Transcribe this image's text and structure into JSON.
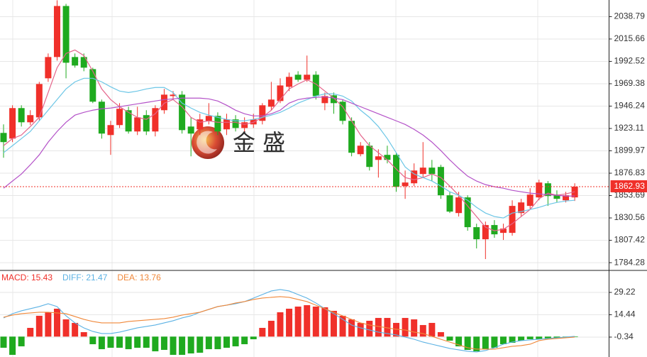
{
  "chart_data": [
    {
      "type": "candlestick",
      "watermark": "金 盛",
      "ylim": [
        1777,
        2056
      ],
      "yticks": [
        2038.79,
        2015.66,
        1992.52,
        1969.38,
        1946.24,
        1923.11,
        1899.97,
        1876.83,
        1853.69,
        1830.56,
        1807.42,
        1784.28
      ],
      "grid": true,
      "up_color": "#f0302a",
      "down_color": "#1faa1f",
      "current_price": 1862.93,
      "current_price_color": "#f0302a",
      "open": [
        1918.5,
        1912.6,
        1944.2,
        1929.5,
        1934.6,
        1975.0,
        1997.0,
        2049.8,
        1997.0,
        1997.0,
        1984.5,
        1950.8,
        1916.3,
        1926.6,
        1942.0,
        1920.0,
        1936.9,
        1920.0,
        1942.0,
        1956.6,
        1958.1,
        1925.1,
        1922.2,
        1931.0,
        1936.1,
        1922.2,
        1932.5,
        1923.6,
        1927.3,
        1931.0,
        1945.6,
        1951.5,
        1966.2,
        1978.7,
        1973.5,
        1978.7,
        1949.3,
        1957.4,
        1950.8,
        1931.0,
        1896.5,
        1905.3,
        1890.6,
        1895.8,
        1895.8,
        1863.5,
        1866.4,
        1876.0,
        1882.6,
        1883.3,
        1854.0,
        1835.6,
        1851.8,
        1821.0,
        1808.5,
        1823.2,
        1815.1,
        1815.1,
        1835.6,
        1843.0,
        1851.8,
        1866.4,
        1854.7,
        1848.8,
        1851.8
      ],
      "high": [
        1927.3,
        1947.1,
        1947.1,
        1942.0,
        1971.3,
        2000.7,
        2055.7,
        2052.0,
        2000.7,
        2000.7,
        1986.0,
        1953.0,
        1931.0,
        1949.3,
        1945.6,
        1945.6,
        1942.0,
        1947.1,
        1964.0,
        1961.8,
        1961.8,
        1934.6,
        1938.3,
        1949.3,
        1939.8,
        1938.3,
        1936.9,
        1934.6,
        1938.3,
        1949.3,
        1971.3,
        1975.0,
        1980.9,
        1982.3,
        1998.5,
        1982.3,
        1960.3,
        1960.3,
        1953.0,
        1934.6,
        1909.0,
        1909.0,
        1901.6,
        1905.3,
        1898.0,
        1879.6,
        1887.0,
        1909.0,
        1890.6,
        1885.5,
        1857.6,
        1857.6,
        1854.0,
        1824.6,
        1826.8,
        1828.3,
        1824.6,
        1848.8,
        1850.3,
        1861.3,
        1870.1,
        1868.7,
        1859.1,
        1857.6,
        1866.4
      ],
      "low": [
        1892.8,
        1909.0,
        1925.1,
        1926.6,
        1931.0,
        1971.3,
        1993.3,
        1975.0,
        1986.0,
        1982.3,
        1949.3,
        1912.6,
        1895.8,
        1923.6,
        1917.8,
        1916.3,
        1916.3,
        1914.9,
        1938.3,
        1953.0,
        1917.8,
        1894.3,
        1916.3,
        1927.3,
        1916.3,
        1916.3,
        1920.0,
        1920.0,
        1923.6,
        1927.3,
        1942.0,
        1949.3,
        1961.8,
        1971.3,
        1971.3,
        1953.0,
        1942.0,
        1938.3,
        1927.3,
        1894.3,
        1894.3,
        1879.6,
        1872.3,
        1887.0,
        1857.6,
        1850.3,
        1863.5,
        1872.3,
        1868.7,
        1850.3,
        1835.6,
        1832.0,
        1817.3,
        1799.0,
        1788.0,
        1810.0,
        1807.8,
        1812.2,
        1832.0,
        1839.3,
        1848.8,
        1843.0,
        1846.6,
        1846.6,
        1848.1
      ],
      "close": [
        1909.0,
        1944.2,
        1929.5,
        1936.9,
        1969.1,
        1997.0,
        2049.8,
        1991.1,
        1988.2,
        1986.0,
        1950.8,
        1917.8,
        1926.6,
        1943.5,
        1920.0,
        1934.6,
        1920.0,
        1944.2,
        1958.1,
        1958.1,
        1921.4,
        1917.8,
        1932.5,
        1936.1,
        1920.0,
        1932.5,
        1923.6,
        1929.5,
        1932.5,
        1947.1,
        1953.0,
        1967.6,
        1976.5,
        1973.5,
        1978.7,
        1956.6,
        1956.6,
        1949.3,
        1931.0,
        1898.0,
        1905.3,
        1883.3,
        1894.3,
        1890.6,
        1862.8,
        1867.2,
        1879.6,
        1882.6,
        1876.0,
        1854.0,
        1837.1,
        1851.8,
        1821.0,
        1808.5,
        1823.2,
        1813.6,
        1819.5,
        1843.0,
        1846.6,
        1854.7,
        1867.2,
        1853.2,
        1850.3,
        1854.0,
        1862.93
      ],
      "series": [
        {
          "color": "#e4648a",
          "values": [
            1905.3,
            1912.6,
            1916.3,
            1925.1,
            1934.6,
            1960.3,
            1986.0,
            2000.7,
            2004.3,
            1998.5,
            1982.3,
            1964.0,
            1953.0,
            1945.6,
            1939.8,
            1934.6,
            1932.5,
            1938.3,
            1949.3,
            1953.0,
            1945.6,
            1934.6,
            1929.5,
            1931.0,
            1929.5,
            1929.5,
            1929.5,
            1927.3,
            1929.5,
            1934.6,
            1942.0,
            1953.0,
            1964.0,
            1969.1,
            1973.5,
            1969.1,
            1961.8,
            1954.5,
            1945.6,
            1931.0,
            1916.3,
            1905.3,
            1898.0,
            1890.6,
            1881.1,
            1872.3,
            1870.1,
            1872.3,
            1876.0,
            1872.3,
            1863.5,
            1854.0,
            1843.0,
            1832.0,
            1821.0,
            1817.3,
            1818.8,
            1824.6,
            1832.0,
            1839.3,
            1850.3,
            1856.2,
            1854.0,
            1855.4,
            1857.6
          ]
        },
        {
          "color": "#6cc6e6",
          "values": [
            1898.0,
            1905.3,
            1912.6,
            1920.0,
            1931.0,
            1942.0,
            1953.0,
            1964.0,
            1971.3,
            1975.0,
            1975.0,
            1971.3,
            1966.2,
            1961.8,
            1960.3,
            1961.8,
            1964.0,
            1965.5,
            1965.5,
            1960.3,
            1949.3,
            1944.2,
            1939.8,
            1936.9,
            1934.6,
            1932.5,
            1931.0,
            1931.0,
            1932.5,
            1934.6,
            1936.9,
            1939.8,
            1944.2,
            1949.3,
            1953.0,
            1956.6,
            1958.9,
            1958.9,
            1956.6,
            1951.5,
            1942.0,
            1934.6,
            1925.1,
            1912.6,
            1898.0,
            1883.3,
            1876.0,
            1872.3,
            1868.7,
            1863.5,
            1857.6,
            1854.0,
            1848.8,
            1841.5,
            1835.6,
            1832.0,
            1830.5,
            1835.6,
            1837.1,
            1839.3,
            1841.5,
            1844.4,
            1846.6,
            1848.1,
            1848.8
          ]
        },
        {
          "color": "#b452c8",
          "values": [
            1861.3,
            1868.7,
            1876.0,
            1885.5,
            1895.8,
            1909.0,
            1920.0,
            1929.5,
            1936.9,
            1939.8,
            1942.0,
            1943.5,
            1944.2,
            1945.6,
            1947.1,
            1948.6,
            1950.0,
            1951.5,
            1953.0,
            1953.7,
            1954.5,
            1954.5,
            1954.5,
            1953.7,
            1951.5,
            1947.1,
            1942.0,
            1938.3,
            1936.1,
            1936.1,
            1938.3,
            1942.0,
            1949.3,
            1953.0,
            1954.5,
            1955.2,
            1955.9,
            1954.5,
            1953.0,
            1949.3,
            1945.6,
            1942.0,
            1938.3,
            1934.6,
            1931.0,
            1927.3,
            1922.2,
            1916.3,
            1909.0,
            1900.2,
            1890.6,
            1881.8,
            1873.8,
            1868.7,
            1865.0,
            1862.8,
            1861.3,
            1859.1,
            1857.6,
            1856.2,
            1855.4,
            1854.7,
            1854.0,
            1853.2,
            1853.2
          ]
        }
      ]
    },
    {
      "type": "macd",
      "ylim": [
        -13.5,
        43.3
      ],
      "yticks": [
        29.22,
        14.44,
        -0.34
      ],
      "grid": true,
      "series": [
        {
          "name": "MACD: 15.43",
          "kind": "bar",
          "color": "#f0302a",
          "down_color": "#1faa1f",
          "values": [
            -7.38,
            -12.08,
            -6.44,
            5.76,
            13.75,
            16.09,
            18.44,
            11.4,
            9.05,
            2.95,
            -5.04,
            -8.32,
            -7.38,
            -7.38,
            -8.32,
            -7.38,
            -7.38,
            -9.73,
            -8.79,
            -12.08,
            -12.08,
            -11.14,
            -10.67,
            -8.32,
            -8.32,
            -7.38,
            -6.44,
            -5.04,
            -1.75,
            5.76,
            10.46,
            16.09,
            18.44,
            19.85,
            20.79,
            19.85,
            19.38,
            17.03,
            13.75,
            11.4,
            9.05,
            10.46,
            12.34,
            12.34,
            9.05,
            12.34,
            11.4,
            7.64,
            9.05,
            2.95,
            -2.69,
            -6.44,
            -8.79,
            -9.73,
            -8.32,
            -7.38,
            -5.04,
            -4.1,
            -2.69,
            -1.75,
            -1.75,
            -1.28,
            -0.81,
            -0.34,
            -0.34
          ]
        },
        {
          "name": "DIFF: 21.47",
          "kind": "line",
          "color": "#5cb2e4",
          "values": [
            12.34,
            15.15,
            17.03,
            18.44,
            19.85,
            21.73,
            19.85,
            13.75,
            9.05,
            5.76,
            3.42,
            2.01,
            2.01,
            2.95,
            4.36,
            5.76,
            6.7,
            7.64,
            9.05,
            10.46,
            12.34,
            13.75,
            16.09,
            17.97,
            19.85,
            20.79,
            21.73,
            23.14,
            25.48,
            27.83,
            30.18,
            31.12,
            30.18,
            27.83,
            25.48,
            22.2,
            18.44,
            15.15,
            11.4,
            7.64,
            5.76,
            4.36,
            2.95,
            2.01,
            1.07,
            -0.34,
            -1.75,
            -3.63,
            -5.04,
            -6.44,
            -7.85,
            -8.79,
            -9.73,
            -10.2,
            -9.26,
            -7.38,
            -5.04,
            -3.63,
            -2.69,
            -2.22,
            -1.75,
            -1.28,
            -0.81,
            -0.34,
            0.13
          ]
        },
        {
          "name": "DEA: 13.76",
          "kind": "line",
          "color": "#f0883a",
          "values": [
            12.81,
            14.21,
            15.15,
            15.62,
            16.09,
            16.09,
            15.62,
            15.15,
            13.28,
            11.4,
            9.99,
            9.05,
            9.05,
            9.05,
            9.99,
            10.46,
            10.93,
            11.4,
            11.87,
            12.81,
            14.21,
            15.15,
            16.09,
            17.97,
            19.85,
            20.79,
            22.2,
            23.14,
            24.54,
            25.48,
            25.95,
            26.42,
            25.95,
            24.54,
            23.14,
            20.79,
            18.44,
            16.09,
            13.75,
            11.4,
            9.05,
            7.64,
            6.7,
            5.76,
            4.82,
            4.36,
            2.95,
            2.01,
            0.13,
            -1.75,
            -3.63,
            -5.5,
            -7.38,
            -8.32,
            -8.32,
            -8.32,
            -7.38,
            -6.44,
            -5.97,
            -5.04,
            -2.69,
            -1.75,
            -1.28,
            -0.81,
            -0.34
          ]
        }
      ]
    }
  ]
}
